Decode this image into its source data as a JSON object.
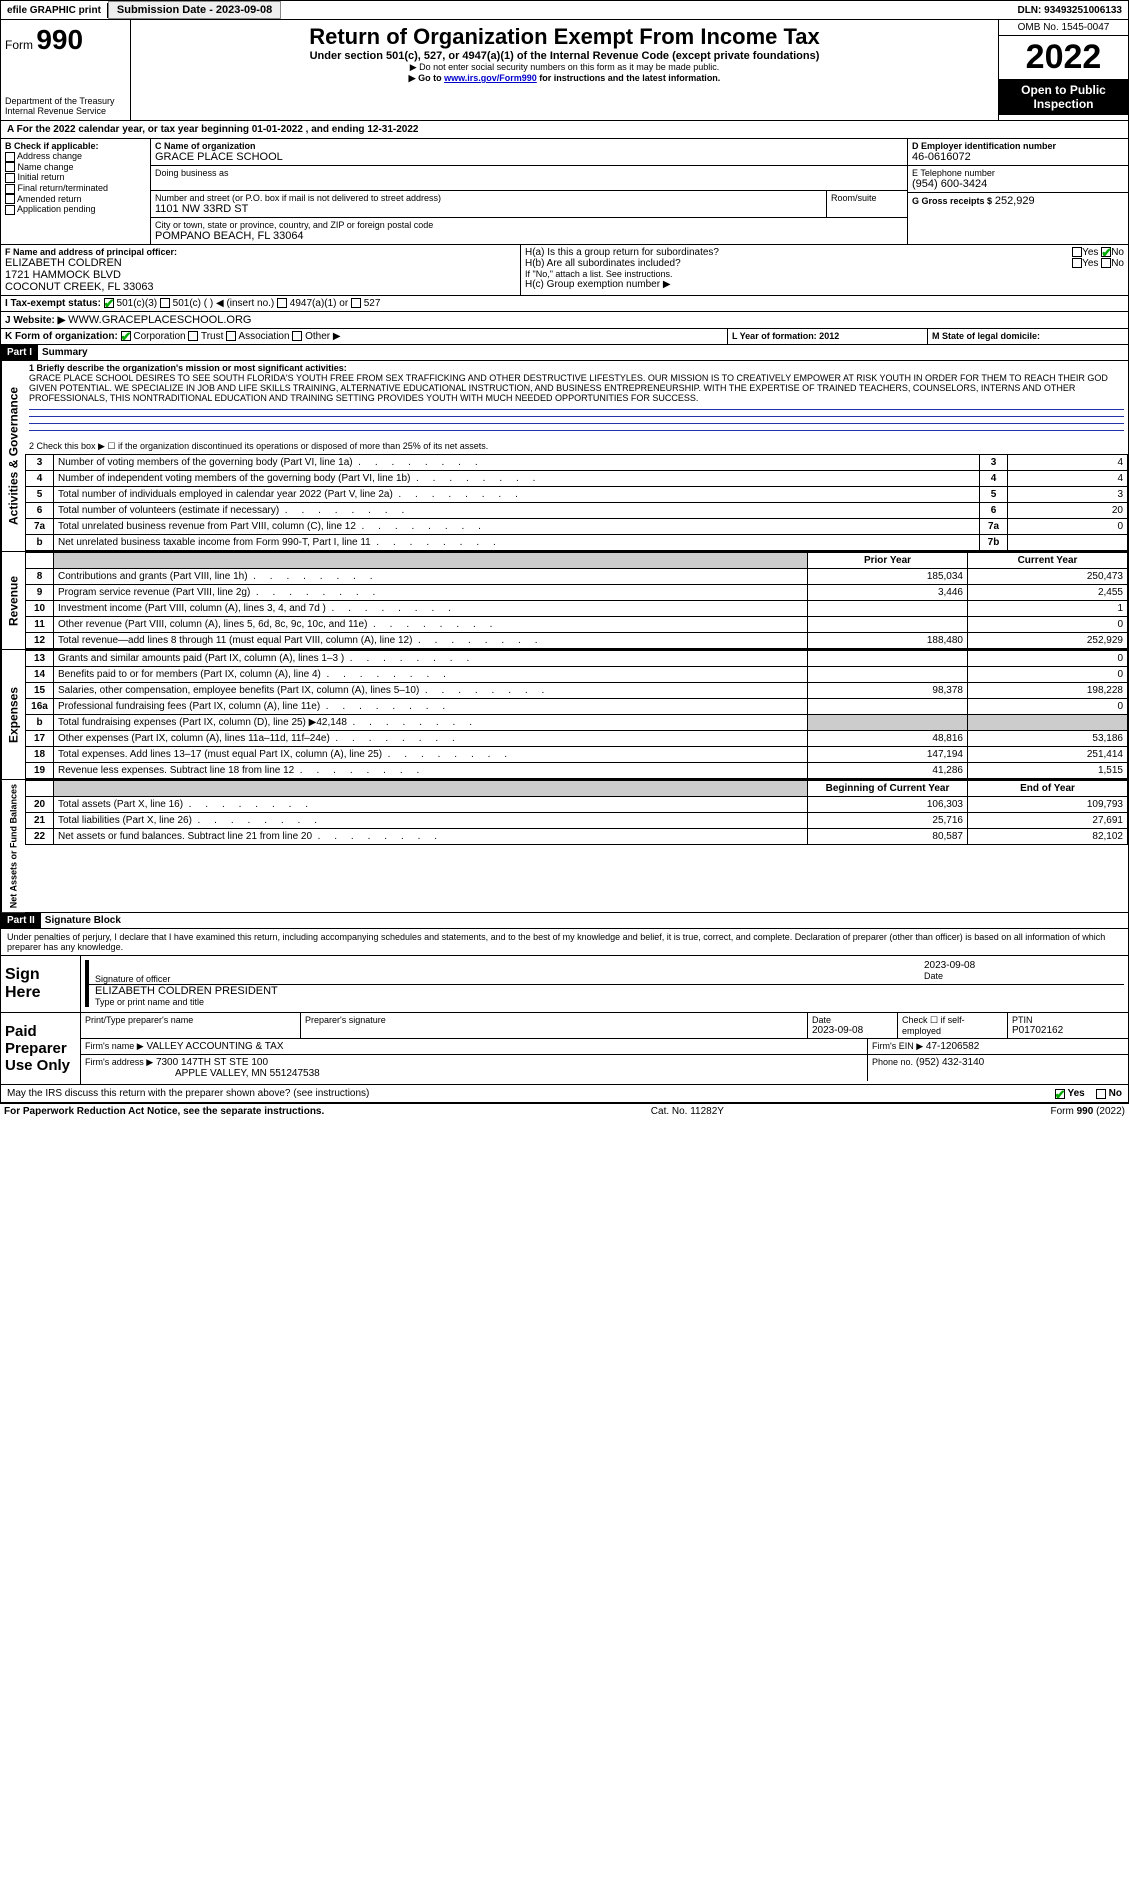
{
  "topbar": {
    "efile": "efile GRAPHIC print",
    "submission_label": "Submission Date - 2023-09-08",
    "dln": "DLN: 93493251006133"
  },
  "header": {
    "form_label": "Form",
    "form_no": "990",
    "dept": "Department of the Treasury",
    "irs": "Internal Revenue Service",
    "title": "Return of Organization Exempt From Income Tax",
    "subtitle": "Under section 501(c), 527, or 4947(a)(1) of the Internal Revenue Code (except private foundations)",
    "note1": "▶ Do not enter social security numbers on this form as it may be made public.",
    "note2_pre": "▶ Go to ",
    "note2_link": "www.irs.gov/Form990",
    "note2_post": " for instructions and the latest information.",
    "omb": "OMB No. 1545-0047",
    "year": "2022",
    "open": "Open to Public Inspection"
  },
  "period": {
    "a_text": "A For the 2022 calendar year, or tax year beginning 01-01-2022   , and ending 12-31-2022"
  },
  "B": {
    "label": "B Check if applicable:",
    "items": [
      "Address change",
      "Name change",
      "Initial return",
      "Final return/terminated",
      "Amended return",
      "Application pending"
    ]
  },
  "C": {
    "name_label": "C Name of organization",
    "name": "GRACE PLACE SCHOOL",
    "dba_label": "Doing business as",
    "addr_label": "Number and street (or P.O. box if mail is not delivered to street address)",
    "room_label": "Room/suite",
    "addr": "1101 NW 33RD ST",
    "city_label": "City or town, state or province, country, and ZIP or foreign postal code",
    "city": "POMPANO BEACH, FL  33064"
  },
  "D": {
    "label": "D Employer identification number",
    "val": "46-0616072"
  },
  "E": {
    "label": "E Telephone number",
    "val": "(954) 600-3424"
  },
  "G": {
    "label": "G Gross receipts $",
    "val": "252,929"
  },
  "F": {
    "label": "F  Name and address of principal officer:",
    "name": "ELIZABETH COLDREN",
    "addr1": "1721 HAMMOCK BLVD",
    "addr2": "COCONUT CREEK, FL  33063"
  },
  "H": {
    "a": "H(a)  Is this a group return for subordinates?",
    "b": "H(b)  Are all subordinates included?",
    "attach": "If \"No,\" attach a list. See instructions.",
    "c": "H(c)  Group exemption number ▶",
    "yes": "Yes",
    "no": "No"
  },
  "I": {
    "label": "I   Tax-exempt status:",
    "opts": [
      "501(c)(3)",
      "501(c) (  ) ◀ (insert no.)",
      "4947(a)(1) or",
      "527"
    ]
  },
  "J": {
    "label": "J   Website: ▶",
    "val": "WWW.GRACEPLACESCHOOL.ORG"
  },
  "K": {
    "label": "K Form of organization:",
    "opts": [
      "Corporation",
      "Trust",
      "Association",
      "Other ▶"
    ]
  },
  "L": {
    "label": "L Year of formation: 2012"
  },
  "M": {
    "label": "M State of legal domicile:"
  },
  "part1": {
    "hdr": "Part I",
    "title": "Summary",
    "line1_label": "1   Briefly describe the organization's mission or most significant activities:",
    "mission": "GRACE PLACE SCHOOL DESIRES TO SEE SOUTH FLORIDA'S YOUTH FREE FROM SEX TRAFFICKING AND OTHER DESTRUCTIVE LIFESTYLES. OUR MISSION IS TO CREATIVELY EMPOWER AT RISK YOUTH IN ORDER FOR THEM TO REACH THEIR GOD GIVEN POTENTIAL. WE SPECIALIZE IN JOB AND LIFE SKILLS TRAINING, ALTERNATIVE EDUCATIONAL INSTRUCTION, AND BUSINESS ENTREPRENEURSHIP. WITH THE EXPERTISE OF TRAINED TEACHERS, COUNSELORS, INTERNS AND OTHER PROFESSIONALS, THIS NONTRADITIONAL EDUCATION AND TRAINING SETTING PROVIDES YOUTH WITH MUCH NEEDED OPPORTUNITIES FOR SUCCESS.",
    "line2": "2   Check this box ▶ ☐ if the organization discontinued its operations or disposed of more than 25% of its net assets.",
    "gov_rows": [
      {
        "n": "3",
        "desc": "Number of voting members of the governing body (Part VI, line 1a)",
        "box": "3",
        "val": "4"
      },
      {
        "n": "4",
        "desc": "Number of independent voting members of the governing body (Part VI, line 1b)",
        "box": "4",
        "val": "4"
      },
      {
        "n": "5",
        "desc": "Total number of individuals employed in calendar year 2022 (Part V, line 2a)",
        "box": "5",
        "val": "3"
      },
      {
        "n": "6",
        "desc": "Total number of volunteers (estimate if necessary)",
        "box": "6",
        "val": "20"
      },
      {
        "n": "7a",
        "desc": "Total unrelated business revenue from Part VIII, column (C), line 12",
        "box": "7a",
        "val": "0"
      },
      {
        "n": "b",
        "desc": "Net unrelated business taxable income from Form 990-T, Part I, line 11",
        "box": "7b",
        "val": ""
      }
    ],
    "col_prior": "Prior Year",
    "col_current": "Current Year",
    "rev_rows": [
      {
        "n": "8",
        "desc": "Contributions and grants (Part VIII, line 1h)",
        "py": "185,034",
        "cy": "250,473"
      },
      {
        "n": "9",
        "desc": "Program service revenue (Part VIII, line 2g)",
        "py": "3,446",
        "cy": "2,455"
      },
      {
        "n": "10",
        "desc": "Investment income (Part VIII, column (A), lines 3, 4, and 7d )",
        "py": "",
        "cy": "1"
      },
      {
        "n": "11",
        "desc": "Other revenue (Part VIII, column (A), lines 5, 6d, 8c, 9c, 10c, and 11e)",
        "py": "",
        "cy": "0"
      },
      {
        "n": "12",
        "desc": "Total revenue—add lines 8 through 11 (must equal Part VIII, column (A), line 12)",
        "py": "188,480",
        "cy": "252,929"
      }
    ],
    "exp_rows": [
      {
        "n": "13",
        "desc": "Grants and similar amounts paid (Part IX, column (A), lines 1–3 )",
        "py": "",
        "cy": "0"
      },
      {
        "n": "14",
        "desc": "Benefits paid to or for members (Part IX, column (A), line 4)",
        "py": "",
        "cy": "0"
      },
      {
        "n": "15",
        "desc": "Salaries, other compensation, employee benefits (Part IX, column (A), lines 5–10)",
        "py": "98,378",
        "cy": "198,228"
      },
      {
        "n": "16a",
        "desc": "Professional fundraising fees (Part IX, column (A), line 11e)",
        "py": "",
        "cy": "0"
      },
      {
        "n": "b",
        "desc": "Total fundraising expenses (Part IX, column (D), line 25) ▶42,148",
        "py": "grey",
        "cy": "grey"
      },
      {
        "n": "17",
        "desc": "Other expenses (Part IX, column (A), lines 11a–11d, 11f–24e)",
        "py": "48,816",
        "cy": "53,186"
      },
      {
        "n": "18",
        "desc": "Total expenses. Add lines 13–17 (must equal Part IX, column (A), line 25)",
        "py": "147,194",
        "cy": "251,414"
      },
      {
        "n": "19",
        "desc": "Revenue less expenses. Subtract line 18 from line 12",
        "py": "41,286",
        "cy": "1,515"
      }
    ],
    "col_begin": "Beginning of Current Year",
    "col_end": "End of Year",
    "na_rows": [
      {
        "n": "20",
        "desc": "Total assets (Part X, line 16)",
        "py": "106,303",
        "cy": "109,793"
      },
      {
        "n": "21",
        "desc": "Total liabilities (Part X, line 26)",
        "py": "25,716",
        "cy": "27,691"
      },
      {
        "n": "22",
        "desc": "Net assets or fund balances. Subtract line 21 from line 20",
        "py": "80,587",
        "cy": "82,102"
      }
    ],
    "sidebar_gov": "Activities & Governance",
    "sidebar_rev": "Revenue",
    "sidebar_exp": "Expenses",
    "sidebar_na": "Net Assets or Fund Balances"
  },
  "part2": {
    "hdr": "Part II",
    "title": "Signature Block",
    "perjury": "Under penalties of perjury, I declare that I have examined this return, including accompanying schedules and statements, and to the best of my knowledge and belief, it is true, correct, and complete. Declaration of preparer (other than officer) is based on all information of which preparer has any knowledge.",
    "sign_here": "Sign Here",
    "sig_officer": "Signature of officer",
    "sig_date": "2023-09-08",
    "date_label": "Date",
    "officer_name": "ELIZABETH COLDREN  PRESIDENT",
    "type_name": "Type or print name and title",
    "paid": "Paid Preparer Use Only",
    "prep_name_label": "Print/Type preparer's name",
    "prep_sig_label": "Preparer's signature",
    "prep_date_label": "Date",
    "prep_date": "2023-09-08",
    "check_self": "Check ☐ if self-employed",
    "ptin_label": "PTIN",
    "ptin": "P01702162",
    "firm_name_label": "Firm's name    ▶",
    "firm_name": "VALLEY ACCOUNTING & TAX",
    "firm_ein_label": "Firm's EIN ▶",
    "firm_ein": "47-1206582",
    "firm_addr_label": "Firm's address ▶",
    "firm_addr1": "7300 147TH ST STE 100",
    "firm_addr2": "APPLE VALLEY, MN  551247538",
    "phone_label": "Phone no.",
    "phone": "(952) 432-3140",
    "discuss": "May the IRS discuss this return with the preparer shown above? (see instructions)",
    "yes": "Yes",
    "no": "No"
  },
  "footer": {
    "left": "For Paperwork Reduction Act Notice, see the separate instructions.",
    "mid": "Cat. No. 11282Y",
    "right": "Form 990 (2022)"
  }
}
